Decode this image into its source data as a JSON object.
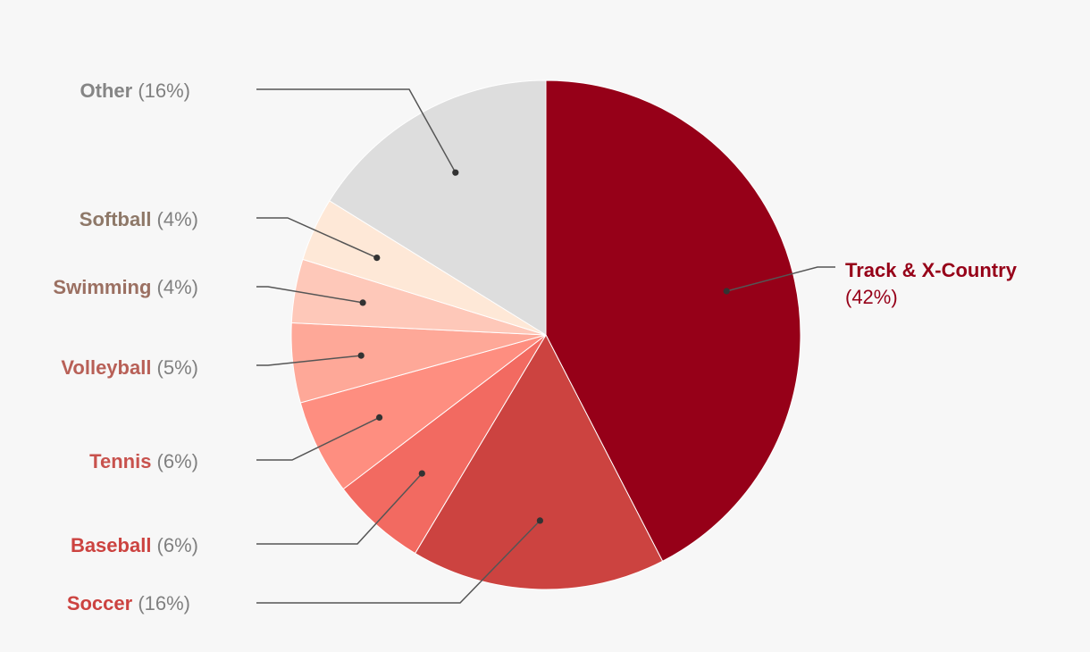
{
  "chart_data": {
    "type": "pie",
    "title": "",
    "slices": [
      {
        "label": "Track & X-Country",
        "pct_text": "(42%)",
        "value": 42,
        "color": "#960018",
        "text_color": "#960018"
      },
      {
        "label": "Soccer",
        "pct_text": "(16%)",
        "value": 16,
        "color": "#cc4340",
        "text_color": "#cc4340"
      },
      {
        "label": "Baseball",
        "pct_text": "(6%)",
        "value": 6,
        "color": "#f26a61",
        "text_color": "#cc4340"
      },
      {
        "label": "Tennis",
        "pct_text": "(6%)",
        "value": 6,
        "color": "#fe8e80",
        "text_color": "#c8524d"
      },
      {
        "label": "Volleyball",
        "pct_text": "(5%)",
        "value": 5,
        "color": "#fea898",
        "text_color": "#b86057"
      },
      {
        "label": "Swimming",
        "pct_text": "(4%)",
        "value": 4,
        "color": "#fec8b9",
        "text_color": "#9b7062"
      },
      {
        "label": "Softball",
        "pct_text": "(4%)",
        "value": 4,
        "color": "#fee8d7",
        "text_color": "#8e7868"
      },
      {
        "label": "Other",
        "pct_text": "(16%)",
        "value": 16,
        "color": "#dddddd",
        "text_color": "#858585"
      }
    ],
    "start": "12 o'clock",
    "direction": "clockwise",
    "legend": "none",
    "leader_line_color": "#555555"
  }
}
